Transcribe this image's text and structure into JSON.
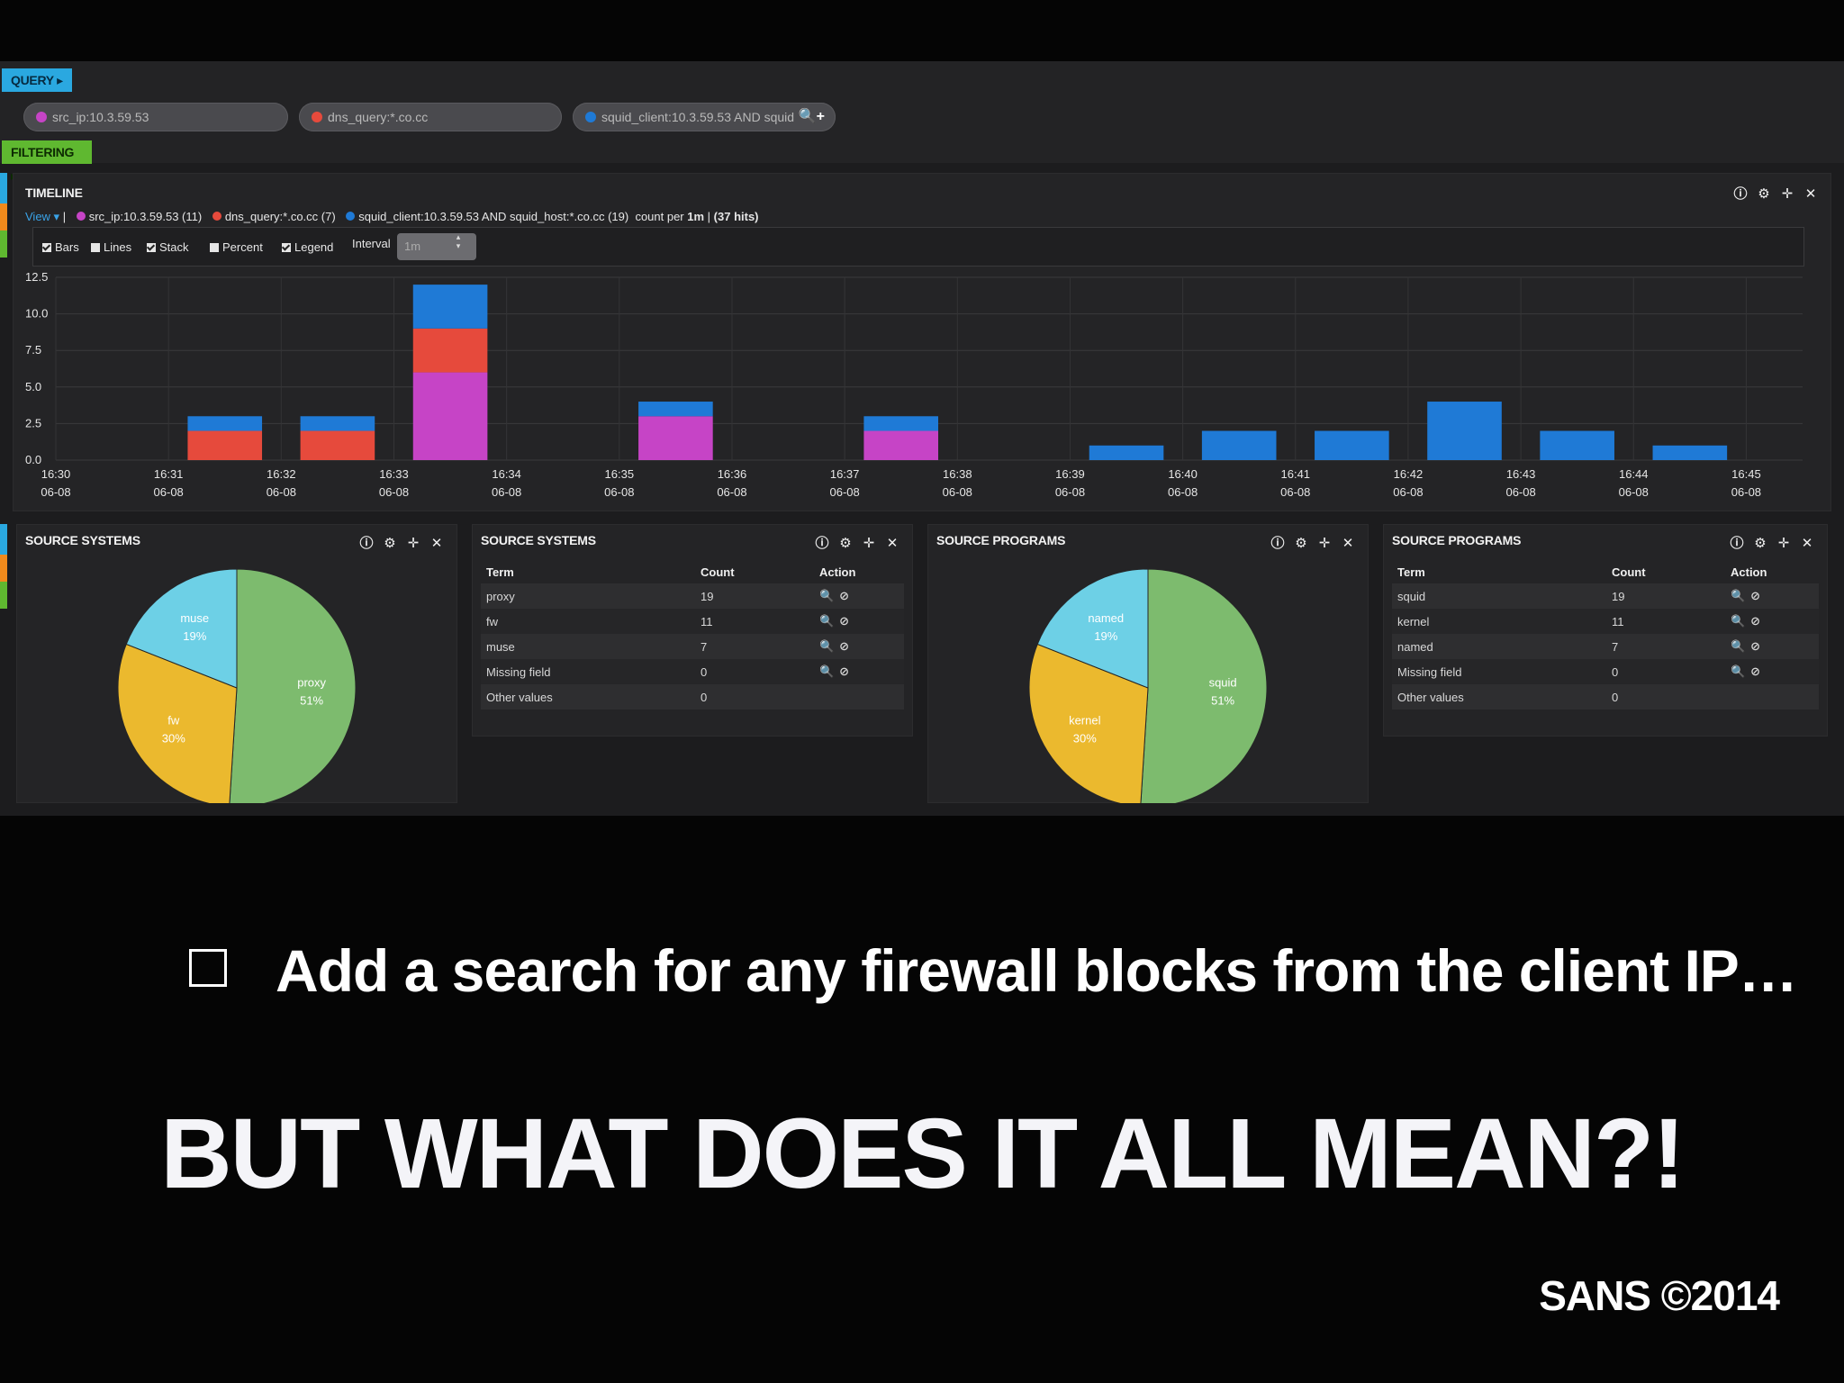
{
  "query_bar": {
    "query_tag": "QUERY ▸",
    "filtering_tag": "FILTERING ▸",
    "queries": [
      {
        "text": "src_ip:10.3.59.53",
        "color": "#c644c6"
      },
      {
        "text": "dns_query:*.co.cc",
        "color": "#e64a3c"
      },
      {
        "text": "squid_client:10.3.59.53 AND squid",
        "color": "#1f7ad6"
      }
    ],
    "query_actions": "🔍+"
  },
  "timeline": {
    "title": "TIMELINE",
    "icons": [
      "info-icon",
      "gear-icon",
      "move-icon",
      "close-icon"
    ],
    "view_label": "View ▾",
    "legend": [
      {
        "text": "src_ip:10.3.59.53 (11)",
        "color": "#c644c6"
      },
      {
        "text": "dns_query:*.co.cc (7)",
        "color": "#e64a3c"
      },
      {
        "text": "squid_client:10.3.59.53 AND squid_host:*.co.cc (19)",
        "color": "#1f7ad6"
      }
    ],
    "count_per": "count per",
    "count_unit": "1m",
    "hits": "(37 hits)",
    "options": [
      {
        "label": "Bars",
        "checked": true
      },
      {
        "label": "Lines",
        "checked": false
      },
      {
        "label": "Stack",
        "checked": true
      },
      {
        "label": "Percent",
        "checked": false
      },
      {
        "label": "Legend",
        "checked": true
      }
    ],
    "interval_label": "Interval",
    "interval_value": "1m"
  },
  "chart_data": [
    {
      "type": "bar",
      "stacked": true,
      "categories": [
        "16:30",
        "16:31",
        "16:32",
        "16:33",
        "16:34",
        "16:35",
        "16:36",
        "16:37",
        "16:38",
        "16:39",
        "16:40",
        "16:41",
        "16:42",
        "16:43",
        "16:44",
        "16:45"
      ],
      "category_sublabel": "06-08",
      "series": [
        {
          "name": "src_ip:10.3.59.53",
          "color": "#c644c6",
          "values": [
            0,
            0,
            0,
            6,
            0,
            3,
            0,
            2,
            0,
            0,
            0,
            0,
            0,
            0,
            0,
            0
          ]
        },
        {
          "name": "dns_query:*.co.cc",
          "color": "#e64a3c",
          "values": [
            0,
            2,
            2,
            3,
            0,
            0,
            0,
            0,
            0,
            0,
            0,
            0,
            0,
            0,
            0,
            0
          ]
        },
        {
          "name": "squid_client:10.3.59.53 AND squid_host:*.co.cc",
          "color": "#1f7ad6",
          "values": [
            0,
            1,
            1,
            3,
            0,
            1,
            0,
            1,
            0,
            1,
            2,
            2,
            4,
            2,
            1,
            0
          ]
        }
      ],
      "yticks": [
        "0.0",
        "2.5",
        "5.0",
        "7.5",
        "10.0",
        "12.5"
      ],
      "ylim": [
        0,
        12.5
      ],
      "grid": true
    },
    {
      "type": "pie",
      "slices": [
        {
          "label": "proxy",
          "pct": "51%",
          "value": 51,
          "color": "#7dbb6e"
        },
        {
          "label": "fw",
          "pct": "30%",
          "value": 30,
          "color": "#ebb92e"
        },
        {
          "label": "muse",
          "pct": "19%",
          "value": 19,
          "color": "#6dd0e6"
        }
      ]
    },
    {
      "type": "pie",
      "slices": [
        {
          "label": "squid",
          "pct": "51%",
          "value": 51,
          "color": "#7dbb6e"
        },
        {
          "label": "kernel",
          "pct": "30%",
          "value": 30,
          "color": "#ebb92e"
        },
        {
          "label": "named",
          "pct": "19%",
          "value": 19,
          "color": "#6dd0e6"
        }
      ]
    }
  ],
  "panels": {
    "source_systems_pie_title": "SOURCE SYSTEMS",
    "source_systems_table_title": "SOURCE SYSTEMS",
    "source_programs_pie_title": "SOURCE PROGRAMS",
    "source_programs_table_title": "SOURCE PROGRAMS"
  },
  "tables": {
    "headers": [
      "Term",
      "Count",
      "Action"
    ],
    "systems": [
      {
        "term": "proxy",
        "count": "19",
        "action": "🔍⊘"
      },
      {
        "term": "fw",
        "count": "11",
        "action": "🔍⊘"
      },
      {
        "term": "muse",
        "count": "7",
        "action": "🔍⊘"
      },
      {
        "term": "Missing field",
        "count": "0",
        "action": "🔍⊘"
      },
      {
        "term": "Other values",
        "count": "0",
        "action": ""
      }
    ],
    "programs": [
      {
        "term": "squid",
        "count": "19",
        "action": "🔍⊘"
      },
      {
        "term": "kernel",
        "count": "11",
        "action": "🔍⊘"
      },
      {
        "term": "named",
        "count": "7",
        "action": "🔍⊘"
      },
      {
        "term": "Missing field",
        "count": "0",
        "action": "🔍⊘"
      },
      {
        "term": "Other values",
        "count": "0",
        "action": ""
      }
    ]
  },
  "slide": {
    "todo_text": "Add a search for any firewall blocks from the client IP…",
    "headline": "BUT WHAT DOES IT ALL MEAN?!",
    "copyright": "SANS ©2014"
  }
}
